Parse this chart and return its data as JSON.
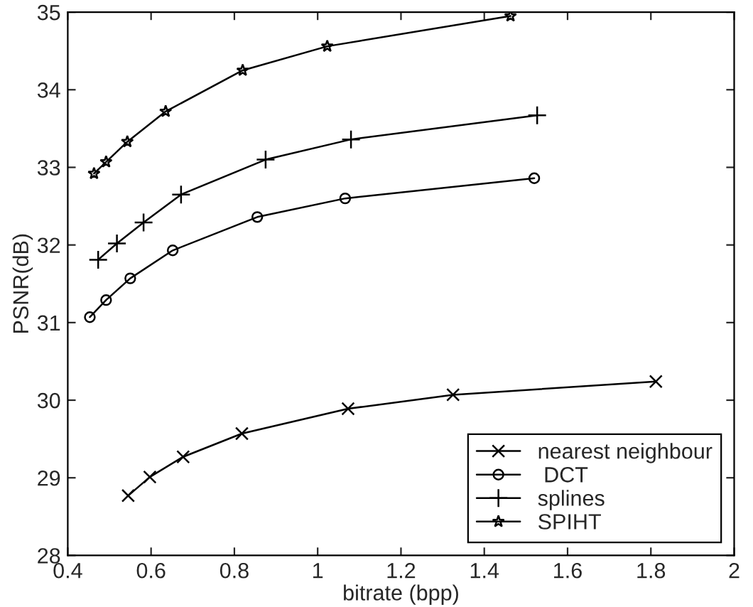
{
  "chart_data": {
    "type": "line",
    "xlabel": "bitrate (bpp)",
    "ylabel": "PSNR(dB)",
    "xlim": [
      0.4,
      2
    ],
    "xticks": [
      0.4,
      0.6,
      0.8,
      1,
      1.2,
      1.4,
      1.6,
      1.8,
      2
    ],
    "ylim": [
      28,
      35
    ],
    "yticks": [
      28,
      29,
      30,
      31,
      32,
      33,
      34,
      35
    ],
    "grid": false,
    "legend": "bottom right",
    "line_style": "solid",
    "series": [
      {
        "name": "nearest neighbour",
        "color": "#000000",
        "marker": "cross",
        "x": [
          0.545,
          0.597,
          0.677,
          0.818,
          1.073,
          1.325,
          1.812
        ],
        "values": [
          28.77,
          29.01,
          29.27,
          29.57,
          29.89,
          30.07,
          30.24
        ]
      },
      {
        "name": " DCT",
        "color": "#000000",
        "marker": "circle",
        "x": [
          0.453,
          0.492,
          0.55,
          0.652,
          0.855,
          1.066,
          1.52
        ],
        "values": [
          31.07,
          31.29,
          31.57,
          31.93,
          32.36,
          32.6,
          32.86
        ]
      },
      {
        "name": "splines",
        "color": "#000000",
        "marker": "plus",
        "x": [
          0.473,
          0.518,
          0.582,
          0.672,
          0.875,
          1.08,
          1.527
        ],
        "values": [
          31.81,
          32.02,
          32.29,
          32.65,
          33.1,
          33.36,
          33.67
        ]
      },
      {
        "name": "SPIHT",
        "color": "#000000",
        "marker": "star",
        "x": [
          0.463,
          0.492,
          0.543,
          0.635,
          0.82,
          1.023,
          1.463
        ],
        "values": [
          32.92,
          33.07,
          33.33,
          33.72,
          34.25,
          34.56,
          34.95
        ]
      }
    ]
  }
}
